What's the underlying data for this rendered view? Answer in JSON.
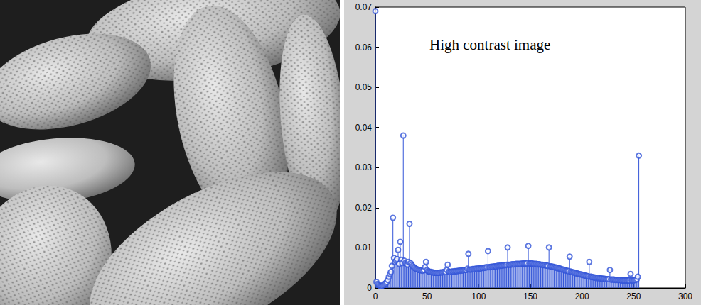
{
  "chart_data": {
    "type": "stem",
    "annotation": "High contrast image",
    "color": "#3355d8",
    "marker": "circle",
    "grid": false,
    "xlim": [
      0,
      300
    ],
    "xticks": [
      0,
      50,
      100,
      150,
      200,
      250,
      300
    ],
    "ylim": [
      0,
      0.07
    ],
    "yticks": [
      0,
      0.01,
      0.02,
      0.03,
      0.04,
      0.05,
      0.06,
      0.07
    ],
    "x": [
      0,
      1,
      2,
      3,
      4,
      5,
      6,
      7,
      8,
      9,
      10,
      11,
      12,
      13,
      14,
      15,
      16,
      17,
      18,
      19,
      20,
      21,
      22,
      23,
      24,
      25,
      26,
      27,
      28,
      29,
      30,
      31,
      32,
      33,
      34,
      35,
      36,
      37,
      38,
      39,
      40,
      41,
      42,
      43,
      44,
      45,
      46,
      47,
      48,
      49,
      50,
      51,
      52,
      53,
      54,
      55,
      56,
      57,
      58,
      59,
      60,
      61,
      62,
      63,
      64,
      65,
      66,
      67,
      68,
      69,
      70,
      71,
      72,
      73,
      74,
      75,
      76,
      77,
      78,
      79,
      80,
      81,
      82,
      83,
      84,
      85,
      86,
      87,
      88,
      89,
      90,
      91,
      92,
      93,
      94,
      95,
      96,
      97,
      98,
      99,
      100,
      101,
      102,
      103,
      104,
      105,
      106,
      107,
      108,
      109,
      110,
      111,
      112,
      113,
      114,
      115,
      116,
      117,
      118,
      119,
      120,
      121,
      122,
      123,
      124,
      125,
      126,
      127,
      128,
      129,
      130,
      131,
      132,
      133,
      134,
      135,
      136,
      137,
      138,
      139,
      140,
      141,
      142,
      143,
      144,
      145,
      146,
      147,
      148,
      149,
      150,
      151,
      152,
      153,
      154,
      155,
      156,
      157,
      158,
      159,
      160,
      161,
      162,
      163,
      164,
      165,
      166,
      167,
      168,
      169,
      170,
      171,
      172,
      173,
      174,
      175,
      176,
      177,
      178,
      179,
      180,
      181,
      182,
      183,
      184,
      185,
      186,
      187,
      188,
      189,
      190,
      191,
      192,
      193,
      194,
      195,
      196,
      197,
      198,
      199,
      200,
      201,
      202,
      203,
      204,
      205,
      206,
      207,
      208,
      209,
      210,
      211,
      212,
      213,
      214,
      215,
      216,
      217,
      218,
      219,
      220,
      221,
      222,
      223,
      224,
      225,
      226,
      227,
      228,
      229,
      230,
      231,
      232,
      233,
      234,
      235,
      236,
      237,
      238,
      239,
      240,
      241,
      242,
      243,
      244,
      245,
      246,
      247,
      248,
      249,
      250,
      251,
      252,
      253,
      254,
      255
    ],
    "values": [
      0.069,
      0.0015,
      0.001,
      0.0008,
      0.0006,
      0.0005,
      0.0005,
      0.0006,
      0.0008,
      0.001,
      0.0012,
      0.0015,
      0.002,
      0.0028,
      0.0035,
      0.004,
      0.0055,
      0.0175,
      0.0075,
      0.0065,
      0.0068,
      0.0072,
      0.0095,
      0.006,
      0.0115,
      0.007,
      0.0062,
      0.038,
      0.0068,
      0.0062,
      0.006,
      0.0058,
      0.0065,
      0.016,
      0.0062,
      0.0058,
      0.0055,
      0.0052,
      0.005,
      0.0048,
      0.0047,
      0.0046,
      0.0045,
      0.0045,
      0.0044,
      0.0044,
      0.0043,
      0.0045,
      0.0052,
      0.0065,
      0.0045,
      0.0042,
      0.0041,
      0.004,
      0.004,
      0.0039,
      0.0039,
      0.0038,
      0.0038,
      0.0038,
      0.0038,
      0.0038,
      0.0038,
      0.0039,
      0.0039,
      0.0039,
      0.004,
      0.004,
      0.004,
      0.0045,
      0.0058,
      0.0041,
      0.004,
      0.004,
      0.0041,
      0.0041,
      0.0041,
      0.0042,
      0.0042,
      0.0042,
      0.0043,
      0.0043,
      0.0043,
      0.0044,
      0.0044,
      0.0044,
      0.0045,
      0.0045,
      0.0045,
      0.0048,
      0.0085,
      0.0046,
      0.0046,
      0.0046,
      0.0047,
      0.0047,
      0.0047,
      0.0048,
      0.0048,
      0.0048,
      0.0049,
      0.0049,
      0.0049,
      0.005,
      0.005,
      0.005,
      0.0051,
      0.0051,
      0.0052,
      0.0092,
      0.0052,
      0.0052,
      0.0053,
      0.0053,
      0.0053,
      0.0054,
      0.0054,
      0.0054,
      0.0055,
      0.0055,
      0.0055,
      0.0056,
      0.0056,
      0.0056,
      0.0057,
      0.0057,
      0.0057,
      0.0058,
      0.0101,
      0.0058,
      0.0058,
      0.0058,
      0.0059,
      0.0059,
      0.0059,
      0.0059,
      0.006,
      0.006,
      0.006,
      0.006,
      0.006,
      0.006,
      0.0061,
      0.0061,
      0.0061,
      0.0061,
      0.0061,
      0.0062,
      0.0105,
      0.0061,
      0.0061,
      0.0061,
      0.0061,
      0.006,
      0.006,
      0.006,
      0.006,
      0.0059,
      0.0059,
      0.0059,
      0.0058,
      0.0058,
      0.0058,
      0.0057,
      0.0057,
      0.0056,
      0.0056,
      0.0055,
      0.0101,
      0.0054,
      0.0054,
      0.0053,
      0.0053,
      0.0052,
      0.0051,
      0.0051,
      0.005,
      0.0049,
      0.0049,
      0.0048,
      0.0047,
      0.0046,
      0.0046,
      0.0045,
      0.0044,
      0.0043,
      0.0043,
      0.0042,
      0.0078,
      0.0041,
      0.004,
      0.0039,
      0.0039,
      0.0038,
      0.0037,
      0.0036,
      0.0036,
      0.0035,
      0.0034,
      0.0034,
      0.0033,
      0.0032,
      0.0032,
      0.0031,
      0.003,
      0.003,
      0.0029,
      0.0065,
      0.0028,
      0.0028,
      0.0027,
      0.0027,
      0.0026,
      0.0026,
      0.0025,
      0.0025,
      0.0025,
      0.0024,
      0.0024,
      0.0024,
      0.0023,
      0.0023,
      0.0023,
      0.0022,
      0.0022,
      0.0022,
      0.0022,
      0.0045,
      0.0021,
      0.0021,
      0.0021,
      0.0021,
      0.002,
      0.002,
      0.002,
      0.002,
      0.002,
      0.002,
      0.0019,
      0.0019,
      0.0019,
      0.0019,
      0.0019,
      0.0019,
      0.0019,
      0.0019,
      0.0019,
      0.0035,
      0.0019,
      0.0019,
      0.0019,
      0.002,
      0.002,
      0.0022,
      0.0028,
      0.033
    ]
  }
}
